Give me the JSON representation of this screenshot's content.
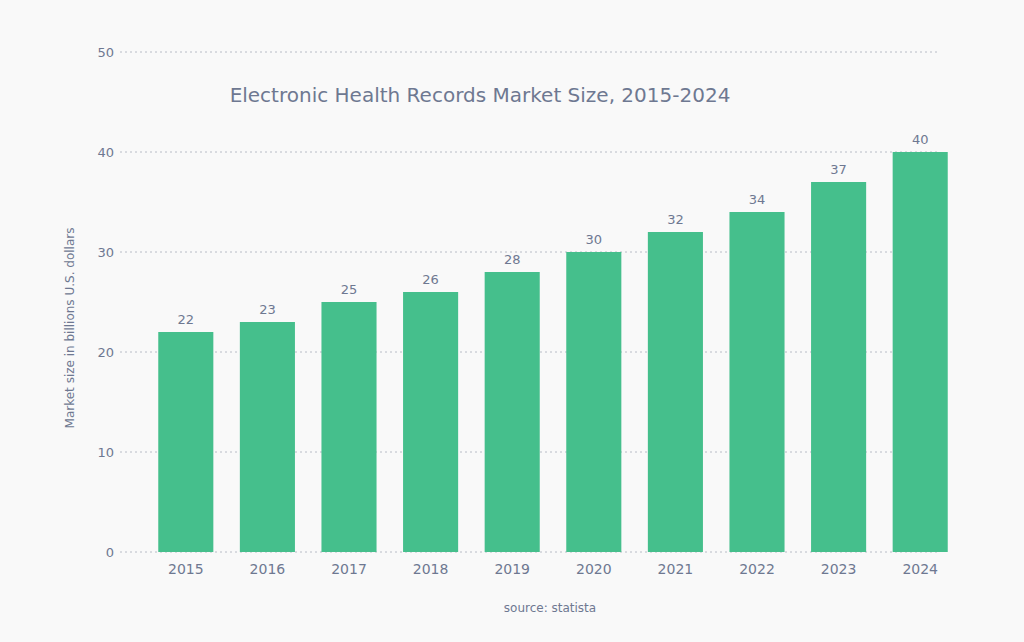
{
  "chart_data": {
    "type": "bar",
    "title": "Electronic Health Records Market Size, 2015-2024",
    "y_label": "Market size in billions U.S. dollars",
    "source": "source: statista",
    "categories": [
      "2015",
      "2016",
      "2017",
      "2018",
      "2019",
      "2020",
      "2021",
      "2022",
      "2023",
      "2024"
    ],
    "values": [
      22,
      23,
      25,
      26,
      28,
      30,
      32,
      34,
      37,
      40
    ],
    "color": "#45bf8c",
    "ylim": [
      0,
      50
    ],
    "yticks": [
      0,
      10,
      20,
      30,
      40,
      50
    ],
    "grid": true,
    "data_labels": true
  }
}
